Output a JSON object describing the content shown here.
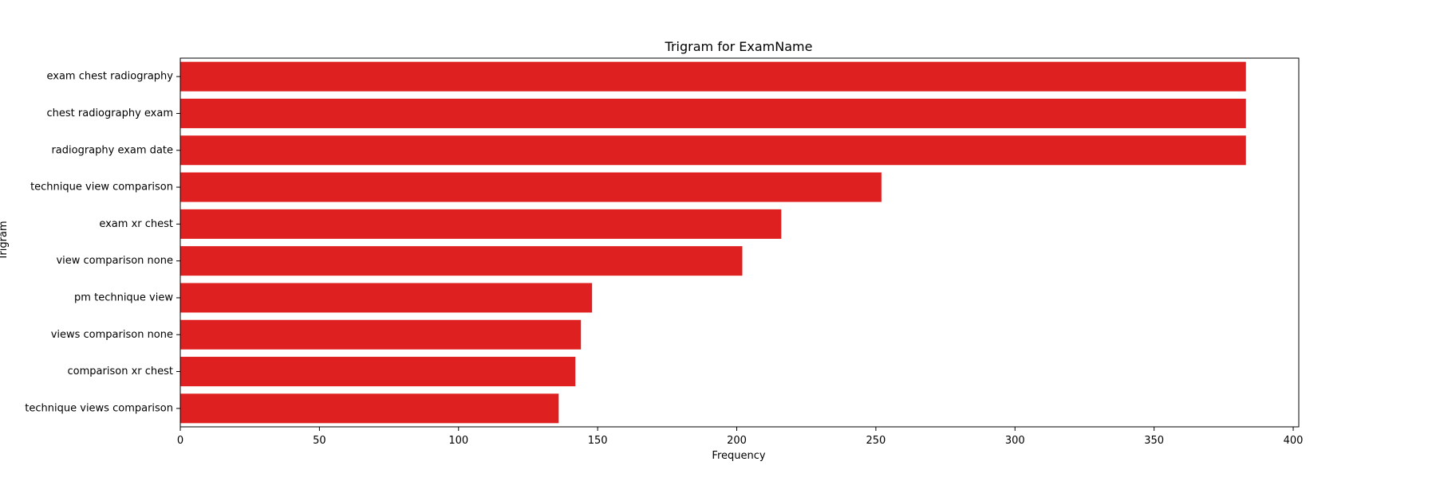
{
  "chart_data": {
    "type": "bar",
    "orientation": "horizontal",
    "title": "Trigram for ExamName",
    "xlabel": "Frequency",
    "ylabel": "Trigram",
    "categories": [
      "exam chest radiography",
      "chest radiography exam",
      "radiography exam date",
      "technique view comparison",
      "exam xr chest",
      "view comparison none",
      "pm technique view",
      "views comparison none",
      "comparison xr chest",
      "technique views comparison"
    ],
    "values": [
      383,
      383,
      383,
      252,
      216,
      202,
      148,
      144,
      142,
      136
    ],
    "xlim": [
      0,
      402
    ],
    "xticks": [
      0,
      50,
      100,
      150,
      200,
      250,
      300,
      350,
      400
    ],
    "grid": false,
    "bar_color": "#df2020"
  }
}
